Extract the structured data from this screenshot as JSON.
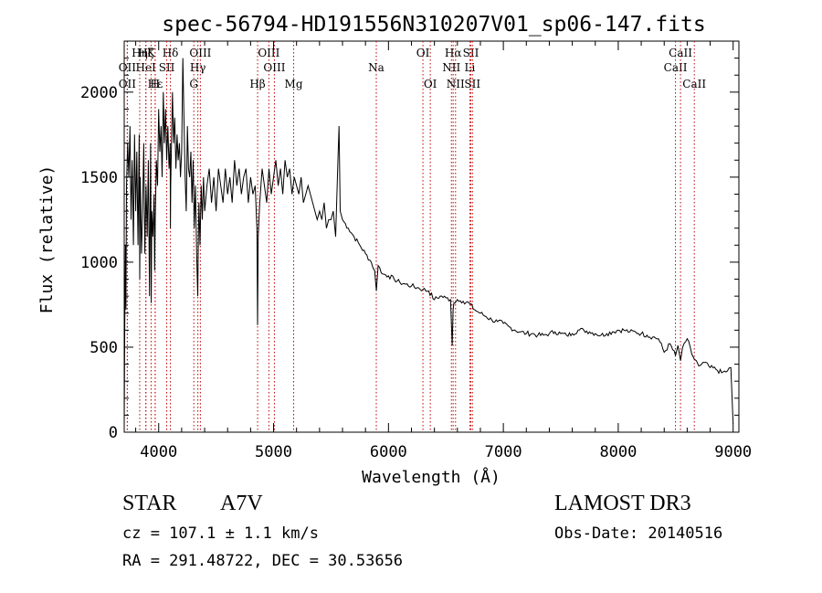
{
  "chart_data": {
    "type": "line",
    "title": "spec-56794-HD191556N310207V01_sp06-147.fits",
    "xlabel": "Wavelength (Å)",
    "ylabel": "Flux (relative)",
    "xlim": [
      3700,
      9050
    ],
    "ylim": [
      0,
      2300
    ],
    "xticks": [
      4000,
      5000,
      6000,
      7000,
      8000,
      9000
    ],
    "yticks": [
      0,
      500,
      1000,
      1500,
      2000
    ],
    "series": [
      {
        "name": "flux",
        "x": [
          3700,
          3705,
          3710,
          3715,
          3720,
          3730,
          3740,
          3750,
          3760,
          3770,
          3780,
          3790,
          3800,
          3810,
          3820,
          3830,
          3835,
          3840,
          3850,
          3860,
          3870,
          3880,
          3890,
          3900,
          3910,
          3920,
          3930,
          3935,
          3940,
          3950,
          3960,
          3965,
          3970,
          3980,
          3990,
          4000,
          4010,
          4020,
          4030,
          4040,
          4050,
          4060,
          4070,
          4080,
          4090,
          4100,
          4102,
          4105,
          4110,
          4120,
          4130,
          4140,
          4150,
          4160,
          4170,
          4180,
          4190,
          4200,
          4210,
          4220,
          4230,
          4240,
          4250,
          4260,
          4270,
          4280,
          4290,
          4300,
          4310,
          4320,
          4330,
          4340,
          4345,
          4350,
          4360,
          4370,
          4380,
          4390,
          4400,
          4420,
          4440,
          4460,
          4480,
          4500,
          4520,
          4540,
          4560,
          4580,
          4600,
          4620,
          4640,
          4660,
          4680,
          4700,
          4720,
          4740,
          4760,
          4780,
          4800,
          4820,
          4840,
          4855,
          4861,
          4866,
          4880,
          4900,
          4920,
          4940,
          4960,
          4980,
          5000,
          5020,
          5040,
          5060,
          5080,
          5100,
          5120,
          5140,
          5160,
          5180,
          5200,
          5220,
          5240,
          5260,
          5280,
          5300,
          5320,
          5340,
          5360,
          5380,
          5400,
          5420,
          5440,
          5460,
          5480,
          5500,
          5520,
          5540,
          5560,
          5570,
          5580,
          5600,
          5650,
          5700,
          5750,
          5800,
          5850,
          5880,
          5895,
          5910,
          5950,
          6000,
          6050,
          6100,
          6150,
          6200,
          6250,
          6300,
          6350,
          6400,
          6450,
          6500,
          6540,
          6555,
          6563,
          6570,
          6580,
          6600,
          6650,
          6700,
          6750,
          6800,
          6850,
          6900,
          6950,
          7000,
          7050,
          7100,
          7150,
          7200,
          7250,
          7300,
          7350,
          7400,
          7450,
          7500,
          7550,
          7600,
          7650,
          7700,
          7750,
          7800,
          7850,
          7900,
          7950,
          8000,
          8050,
          8100,
          8150,
          8200,
          8250,
          8300,
          8350,
          8400,
          8450,
          8498,
          8520,
          8542,
          8560,
          8600,
          8640,
          8662,
          8680,
          8700,
          8750,
          8800,
          8850,
          8900,
          8950,
          8980,
          9000
        ],
        "y": [
          30,
          620,
          1100,
          720,
          1450,
          1700,
          1500,
          1800,
          1250,
          1600,
          1100,
          1750,
          1300,
          1650,
          1100,
          1750,
          900,
          1500,
          1050,
          1300,
          1700,
          1050,
          1450,
          1150,
          1600,
          800,
          1700,
          760,
          1300,
          1150,
          1400,
          950,
          1250,
          1600,
          1450,
          1900,
          1650,
          1800,
          1500,
          2000,
          1700,
          1900,
          1600,
          1800,
          1550,
          1700,
          1200,
          1450,
          1650,
          2000,
          1700,
          1850,
          1550,
          1750,
          1600,
          1700,
          1500,
          1650,
          2200,
          1850,
          1500,
          1300,
          1800,
          1550,
          1500,
          1650,
          1350,
          1600,
          1200,
          1450,
          1050,
          800,
          1100,
          1350,
          1100,
          1450,
          1250,
          1500,
          1300,
          1450,
          1550,
          1350,
          1500,
          1300,
          1550,
          1450,
          1350,
          1550,
          1400,
          1500,
          1350,
          1600,
          1450,
          1550,
          1400,
          1500,
          1550,
          1350,
          1500,
          1400,
          1450,
          1200,
          630,
          1150,
          1350,
          1550,
          1450,
          1350,
          1550,
          1400,
          1500,
          1600,
          1450,
          1550,
          1400,
          1600,
          1500,
          1550,
          1400,
          1500,
          1450,
          1400,
          1500,
          1350,
          1400,
          1450,
          1400,
          1350,
          1300,
          1250,
          1300,
          1250,
          1350,
          1200,
          1250,
          1250,
          1300,
          1150,
          1600,
          1800,
          1300,
          1250,
          1200,
          1150,
          1100,
          1050,
          1000,
          950,
          830,
          980,
          930,
          920,
          900,
          880,
          870,
          860,
          850,
          840,
          830,
          780,
          800,
          790,
          780,
          510,
          720,
          760,
          760,
          780,
          770,
          760,
          720,
          700,
          680,
          660,
          650,
          640,
          620,
          600,
          590,
          580,
          580,
          570,
          570,
          580,
          590,
          580,
          570,
          580,
          600,
          600,
          590,
          580,
          570,
          580,
          590,
          600,
          600,
          590,
          590,
          580,
          570,
          560,
          550,
          470,
          520,
          450,
          510,
          420,
          500,
          550,
          460,
          430,
          420,
          390,
          410,
          380,
          370,
          350,
          360,
          380,
          50
        ]
      }
    ],
    "lines": [
      {
        "name": "OII",
        "wl": 3727,
        "row": 3
      },
      {
        "name": "Hη",
        "wl": 3835,
        "row": 1
      },
      {
        "name": "OII",
        "wl": 3727,
        "row": 2
      },
      {
        "name": "HeI",
        "wl": 3888,
        "row": 2
      },
      {
        "name": "Hζ",
        "wl": 3889,
        "row": 1
      },
      {
        "name": "Hε",
        "wl": 3970,
        "row": 3
      },
      {
        "name": "K",
        "wl": 3934,
        "row": 1
      },
      {
        "name": "H",
        "wl": 3969,
        "row": 3
      },
      {
        "name": "SII",
        "wl": 4070,
        "row": 2
      },
      {
        "name": "Hδ",
        "wl": 4102,
        "row": 1
      },
      {
        "name": "OIII",
        "wl": 4363,
        "row": 1
      },
      {
        "name": "Hγ",
        "wl": 4341,
        "row": 2
      },
      {
        "name": "G",
        "wl": 4306,
        "row": 3
      },
      {
        "name": "Hβ",
        "wl": 4861,
        "row": 3
      },
      {
        "name": "OIII",
        "wl": 4959,
        "row": 1
      },
      {
        "name": "OIII",
        "wl": 5007,
        "row": 2
      },
      {
        "name": "Mg",
        "wl": 5175,
        "row": 3
      },
      {
        "name": "Na",
        "wl": 5894,
        "row": 2
      },
      {
        "name": "OI",
        "wl": 6300,
        "row": 1
      },
      {
        "name": "OI",
        "wl": 6364,
        "row": 3
      },
      {
        "name": "Hα",
        "wl": 6563,
        "row": 1
      },
      {
        "name": "NII",
        "wl": 6548,
        "row": 2
      },
      {
        "name": "NII",
        "wl": 6584,
        "row": 3
      },
      {
        "name": "SII",
        "wl": 6717,
        "row": 1
      },
      {
        "name": "Li",
        "wl": 6708,
        "row": 2
      },
      {
        "name": "SII",
        "wl": 6731,
        "row": 3
      },
      {
        "name": "CaII",
        "wl": 8498,
        "row": 2
      },
      {
        "name": "CaII",
        "wl": 8542,
        "row": 1
      },
      {
        "name": "CaII",
        "wl": 8662,
        "row": 3
      }
    ]
  },
  "info": {
    "object_type": "STAR",
    "subclass": "A7V",
    "survey": "LAMOST DR3",
    "redshift": "cz = 107.1 ± 1.1 km/s",
    "obs_date": "Obs-Date: 20140516",
    "coords": "RA = 291.48722, DEC =  30.53656"
  }
}
